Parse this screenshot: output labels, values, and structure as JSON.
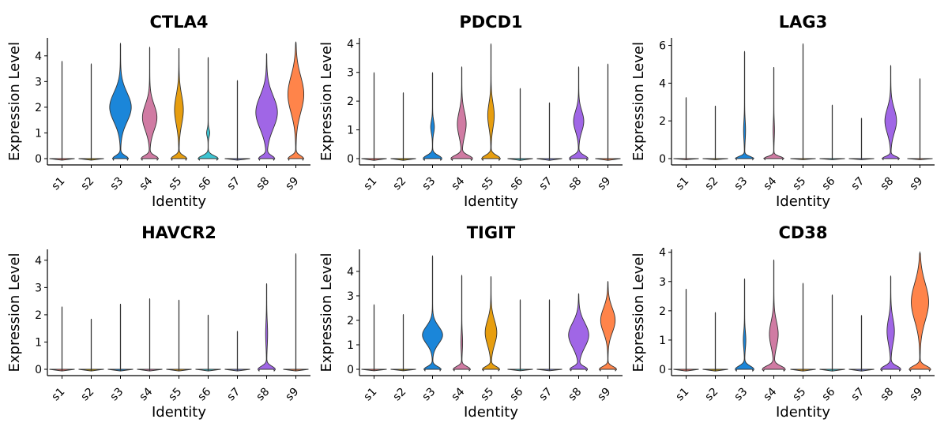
{
  "chart_data": [
    {
      "type": "violin",
      "title": "CTLA4",
      "xlabel": "Identity",
      "ylabel": "Expression Level",
      "categories": [
        "s1",
        "s2",
        "s3",
        "s4",
        "s5",
        "s6",
        "s7",
        "s8",
        "s9"
      ],
      "ylim": [
        0,
        4.7
      ],
      "yticks": [
        0,
        1,
        2,
        3,
        4
      ],
      "max_expression": [
        3.8,
        3.7,
        4.5,
        4.35,
        4.3,
        3.95,
        3.05,
        4.1,
        4.55
      ],
      "zero_spike": [
        0,
        0,
        0.55,
        0.6,
        0.55,
        0.7,
        0,
        0.55,
        0.55
      ],
      "positive_mode": [
        null,
        null,
        2.0,
        1.6,
        1.9,
        1.0,
        null,
        1.8,
        2.5
      ],
      "positive_spread": [
        null,
        null,
        0.8,
        0.7,
        0.8,
        0.2,
        null,
        0.9,
        1.0
      ],
      "positive_width": [
        0,
        0,
        0.75,
        0.5,
        0.3,
        0.1,
        0,
        0.75,
        0.55
      ]
    },
    {
      "type": "violin",
      "title": "PDCD1",
      "xlabel": "Identity",
      "ylabel": "Expression Level",
      "categories": [
        "s1",
        "s2",
        "s3",
        "s4",
        "s5",
        "s6",
        "s7",
        "s8",
        "s9"
      ],
      "ylim": [
        0,
        4.2
      ],
      "yticks": [
        0,
        1,
        2,
        3,
        4
      ],
      "max_expression": [
        3.0,
        2.3,
        3.0,
        3.2,
        4.0,
        2.45,
        1.95,
        3.2,
        3.3
      ],
      "zero_spike": [
        0,
        0,
        0.65,
        0.75,
        0.65,
        0,
        0,
        0.65,
        0
      ],
      "positive_mode": [
        null,
        null,
        1.1,
        1.2,
        1.5,
        null,
        null,
        1.3,
        null
      ],
      "positive_spread": [
        null,
        null,
        0.3,
        0.6,
        0.6,
        null,
        null,
        0.5,
        null
      ],
      "positive_width": [
        0,
        0,
        0.12,
        0.3,
        0.22,
        0,
        0,
        0.35,
        0
      ]
    },
    {
      "type": "violin",
      "title": "LAG3",
      "xlabel": "Identity",
      "ylabel": "Expression Level",
      "categories": [
        "s1",
        "s2",
        "s3",
        "s4",
        "s5",
        "s6",
        "s7",
        "s8",
        "s9"
      ],
      "ylim": [
        0,
        6.4
      ],
      "yticks": [
        0,
        2,
        4,
        6
      ],
      "max_expression": [
        3.25,
        2.8,
        5.7,
        4.85,
        6.1,
        2.85,
        2.15,
        4.95,
        4.25
      ],
      "zero_spike": [
        0,
        0,
        0.65,
        0.7,
        0,
        0,
        0,
        0.6,
        0
      ],
      "positive_mode": [
        null,
        null,
        1.5,
        1.5,
        null,
        null,
        null,
        2.0,
        null
      ],
      "positive_spread": [
        null,
        null,
        0.7,
        0.6,
        null,
        null,
        null,
        0.9,
        null
      ],
      "positive_width": [
        0,
        0,
        0.06,
        0.04,
        0,
        0,
        0,
        0.4,
        0
      ]
    },
    {
      "type": "violin",
      "title": "HAVCR2",
      "xlabel": "Identity",
      "ylabel": "Expression Level",
      "categories": [
        "s1",
        "s2",
        "s3",
        "s4",
        "s5",
        "s6",
        "s7",
        "s8",
        "s9"
      ],
      "ylim": [
        0,
        4.4
      ],
      "yticks": [
        0,
        1,
        2,
        3,
        4
      ],
      "max_expression": [
        2.3,
        1.85,
        2.4,
        2.6,
        2.55,
        2.0,
        1.4,
        3.15,
        4.25
      ],
      "zero_spike": [
        0,
        0,
        0,
        0,
        0,
        0,
        0,
        0.6,
        0
      ],
      "positive_mode": [
        null,
        null,
        null,
        null,
        null,
        null,
        null,
        1.3,
        null
      ],
      "positive_spread": [
        null,
        null,
        null,
        null,
        null,
        null,
        null,
        0.6,
        null
      ],
      "positive_width": [
        0,
        0,
        0,
        0,
        0,
        0,
        0,
        0.06,
        0
      ]
    },
    {
      "type": "violin",
      "title": "TIGIT",
      "xlabel": "Identity",
      "ylabel": "Expression Level",
      "categories": [
        "s1",
        "s2",
        "s3",
        "s4",
        "s5",
        "s6",
        "s7",
        "s8",
        "s9"
      ],
      "ylim": [
        0,
        4.9
      ],
      "yticks": [
        0,
        1,
        2,
        3,
        4
      ],
      "max_expression": [
        2.65,
        2.25,
        4.65,
        3.85,
        3.8,
        2.85,
        2.85,
        3.1,
        3.6
      ],
      "zero_spike": [
        0,
        0,
        0.6,
        0.6,
        0.6,
        0,
        0,
        0.6,
        0.6
      ],
      "positive_mode": [
        null,
        null,
        1.4,
        1.1,
        1.5,
        null,
        null,
        1.4,
        2.0
      ],
      "positive_spread": [
        null,
        null,
        0.5,
        0.5,
        0.7,
        null,
        null,
        0.7,
        0.7
      ],
      "positive_width": [
        0,
        0,
        0.7,
        0.05,
        0.4,
        0,
        0,
        0.7,
        0.5
      ]
    },
    {
      "type": "violin",
      "title": "CD38",
      "xlabel": "Identity",
      "ylabel": "Expression Level",
      "categories": [
        "s1",
        "s2",
        "s3",
        "s4",
        "s5",
        "s6",
        "s7",
        "s8",
        "s9"
      ],
      "ylim": [
        0,
        4.1
      ],
      "yticks": [
        0,
        1,
        2,
        3,
        4
      ],
      "max_expression": [
        2.75,
        1.95,
        3.1,
        3.75,
        2.95,
        2.55,
        1.85,
        3.2,
        4.0
      ],
      "zero_spike": [
        0,
        0,
        0.65,
        0.8,
        0,
        0,
        0,
        0.7,
        0.75
      ],
      "positive_mode": [
        null,
        null,
        1.0,
        1.2,
        null,
        null,
        null,
        1.3,
        2.3
      ],
      "positive_spread": [
        null,
        null,
        0.4,
        0.6,
        null,
        null,
        null,
        0.6,
        0.9
      ],
      "positive_width": [
        0,
        0,
        0.08,
        0.3,
        0,
        0,
        0,
        0.25,
        0.6
      ]
    }
  ],
  "colors": {
    "s1": "#f8766d",
    "s2": "#c49a00",
    "s3": "#1b86d9",
    "s4": "#d07ba3",
    "s5": "#e79e0f",
    "s6": "#3cc4d2",
    "s7": "#7f8be0",
    "s8": "#a066e6",
    "s9": "#ff844a"
  }
}
